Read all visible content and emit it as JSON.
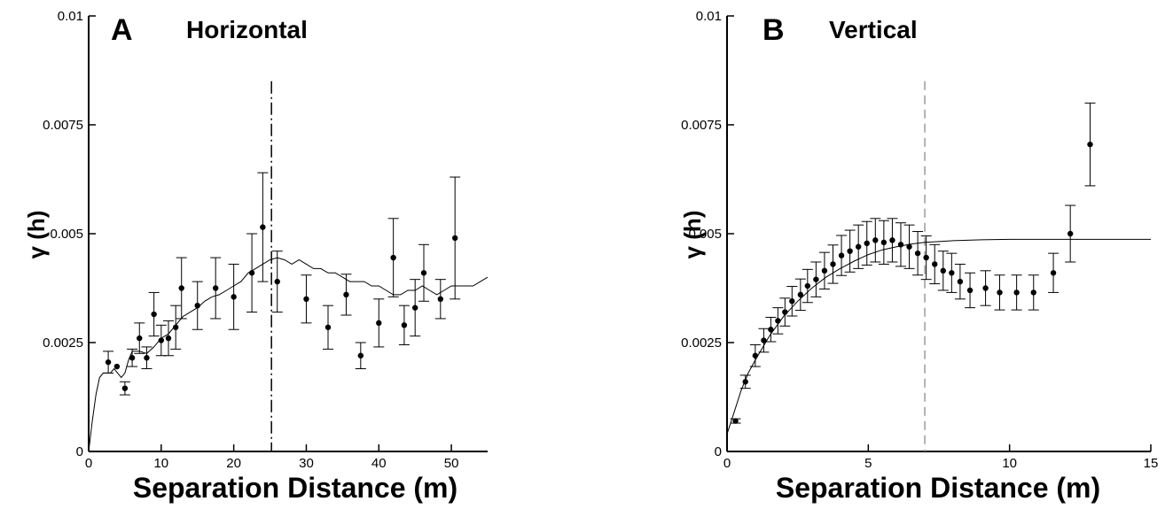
{
  "chart_data": [
    {
      "type": "scatter",
      "panel": "A",
      "title": "Horizontal",
      "xlabel": "Separation Distance (m)",
      "ylabel": "γ (h)",
      "xlim": [
        0,
        55
      ],
      "ylim": [
        0,
        0.01
      ],
      "xticks": [
        0,
        10,
        20,
        30,
        40,
        50
      ],
      "xtick_labels": [
        "0",
        "10",
        "20",
        "30",
        "40",
        "50"
      ],
      "yticks": [
        0,
        0.0025,
        0.005,
        0.0075,
        0.01
      ],
      "ytick_labels": [
        "0",
        "0.0025",
        "0.005",
        "0.0075",
        "0.01"
      ],
      "grid": false,
      "vline": {
        "x": 25.2,
        "style": "dash-dot",
        "color": "#000000"
      },
      "series": [
        {
          "type": "scatter-errorbar",
          "x": [
            2.7,
            3.9,
            5.0,
            6.0,
            7.0,
            8.0,
            9.0,
            10.0,
            11.0,
            12.0,
            12.8,
            15.0,
            17.5,
            20.0,
            22.5,
            24.0,
            26.0,
            30.0,
            33.0,
            35.5,
            37.5,
            40.0,
            42.0,
            43.5,
            45.0,
            46.2,
            48.5,
            50.5
          ],
          "y": [
            0.00205,
            0.00195,
            0.00145,
            0.00215,
            0.0026,
            0.00215,
            0.00315,
            0.00255,
            0.0026,
            0.00285,
            0.00375,
            0.00335,
            0.00375,
            0.00355,
            0.0041,
            0.00515,
            0.0039,
            0.0035,
            0.00285,
            0.0036,
            0.0022,
            0.00295,
            0.00445,
            0.0029,
            0.0033,
            0.0041,
            0.0035,
            0.0049
          ],
          "yerr": [
            0.00025,
            0.0,
            0.00015,
            0.0002,
            0.00035,
            0.00025,
            0.0005,
            0.00035,
            0.0004,
            0.0005,
            0.0007,
            0.00055,
            0.0007,
            0.00075,
            0.0009,
            0.00125,
            0.0007,
            0.00055,
            0.0005,
            0.00047,
            0.0003,
            0.00055,
            0.0009,
            0.00045,
            0.00065,
            0.00065,
            0.00045,
            0.0014
          ]
        },
        {
          "type": "line",
          "x": [
            0,
            0.5,
            1.0,
            1.5,
            2.0,
            2.5,
            3.0,
            3.5,
            4.0,
            4.5,
            5.0,
            5.5,
            6.0,
            7.0,
            8.0,
            9.0,
            10.0,
            11.0,
            12.0,
            13.0,
            14.0,
            15.0,
            16.0,
            17.0,
            18.0,
            19.0,
            20.0,
            21.0,
            22.0,
            23.0,
            24.0,
            25.0,
            26.0,
            27.0,
            28.0,
            29.0,
            30.0,
            31.0,
            32.0,
            33.0,
            34.0,
            35.0,
            36.0,
            37.0,
            38.0,
            39.0,
            40.0,
            41.0,
            42.0,
            43.0,
            44.0,
            45.0,
            46.0,
            47.0,
            48.0,
            49.0,
            50.0,
            51.0,
            52.0,
            53.0,
            54.0,
            55.0
          ],
          "y": [
            0.0,
            0.0007,
            0.0013,
            0.0017,
            0.0018,
            0.0018,
            0.0018,
            0.0019,
            0.0018,
            0.0017,
            0.0018,
            0.0021,
            0.0023,
            0.0023,
            0.00225,
            0.0024,
            0.0026,
            0.0027,
            0.0029,
            0.0031,
            0.0032,
            0.0033,
            0.00345,
            0.00355,
            0.0036,
            0.0037,
            0.0038,
            0.0039,
            0.0041,
            0.0042,
            0.0043,
            0.0044,
            0.00445,
            0.0044,
            0.0043,
            0.0044,
            0.0043,
            0.0042,
            0.0042,
            0.0041,
            0.0041,
            0.004,
            0.0039,
            0.0039,
            0.0039,
            0.0038,
            0.0038,
            0.0037,
            0.0036,
            0.0036,
            0.0037,
            0.0037,
            0.0038,
            0.0037,
            0.0036,
            0.0037,
            0.0038,
            0.0038,
            0.0038,
            0.0038,
            0.0039,
            0.004
          ]
        }
      ]
    },
    {
      "type": "scatter",
      "panel": "B",
      "title": "Vertical",
      "xlabel": "Separation Distance (m)",
      "ylabel": "γ (h)",
      "xlim": [
        0,
        15
      ],
      "ylim": [
        0,
        0.01
      ],
      "xticks": [
        0,
        5,
        10,
        15
      ],
      "xtick_labels": [
        "0",
        "5",
        "10",
        "15"
      ],
      "yticks": [
        0,
        0.0025,
        0.005,
        0.0075,
        0.01
      ],
      "ytick_labels": [
        "0",
        "0.0025",
        "0.005",
        "0.0075",
        "0.01"
      ],
      "grid": false,
      "vline": {
        "x": 7.0,
        "style": "dashed",
        "color": "#9a9a9a"
      },
      "series": [
        {
          "type": "scatter-errorbar",
          "x": [
            0.3,
            0.65,
            1.0,
            1.3,
            1.55,
            1.8,
            2.05,
            2.3,
            2.6,
            2.85,
            3.15,
            3.45,
            3.75,
            4.05,
            4.35,
            4.65,
            4.95,
            5.25,
            5.55,
            5.85,
            6.15,
            6.45,
            6.75,
            7.05,
            7.35,
            7.65,
            7.95,
            8.25,
            8.6,
            9.15,
            9.65,
            10.25,
            10.85,
            11.55,
            12.15,
            12.85
          ],
          "y": [
            0.0007,
            0.0016,
            0.0022,
            0.00255,
            0.0028,
            0.003,
            0.0032,
            0.00345,
            0.0036,
            0.0038,
            0.00395,
            0.00415,
            0.0043,
            0.0045,
            0.0046,
            0.0047,
            0.00478,
            0.00485,
            0.0048,
            0.00485,
            0.00475,
            0.0047,
            0.00455,
            0.00445,
            0.0043,
            0.00415,
            0.0041,
            0.0039,
            0.0037,
            0.00375,
            0.00365,
            0.00365,
            0.00365,
            0.0041,
            0.005,
            0.00705
          ],
          "yerr": [
            5e-05,
            0.00015,
            0.00025,
            0.00027,
            0.00028,
            0.0003,
            0.00032,
            0.00034,
            0.00036,
            0.00038,
            0.0004,
            0.00042,
            0.00044,
            0.00046,
            0.00048,
            0.0005,
            0.0005,
            0.0005,
            0.0005,
            0.0005,
            0.0005,
            0.0005,
            0.0005,
            0.0005,
            0.00045,
            0.00045,
            0.00045,
            0.0004,
            0.0004,
            0.0004,
            0.0004,
            0.0004,
            0.0004,
            0.00045,
            0.00065,
            0.00095
          ]
        },
        {
          "type": "line",
          "x": [
            0,
            0.25,
            0.5,
            0.75,
            1.0,
            1.5,
            2.0,
            2.5,
            3.0,
            3.5,
            4.0,
            4.5,
            5.0,
            5.5,
            6.0,
            6.5,
            7.0,
            7.5,
            8.0,
            9.0,
            10.0,
            11.0,
            12.0,
            13.0,
            14.0,
            15.0
          ],
          "y": [
            0.0004,
            0.0009,
            0.0014,
            0.0018,
            0.0021,
            0.00265,
            0.0031,
            0.00345,
            0.00375,
            0.004,
            0.0042,
            0.00437,
            0.00452,
            0.00463,
            0.0047,
            0.00476,
            0.0048,
            0.00482,
            0.00484,
            0.00486,
            0.00487,
            0.00487,
            0.00487,
            0.00487,
            0.00487,
            0.00487
          ]
        }
      ]
    }
  ]
}
